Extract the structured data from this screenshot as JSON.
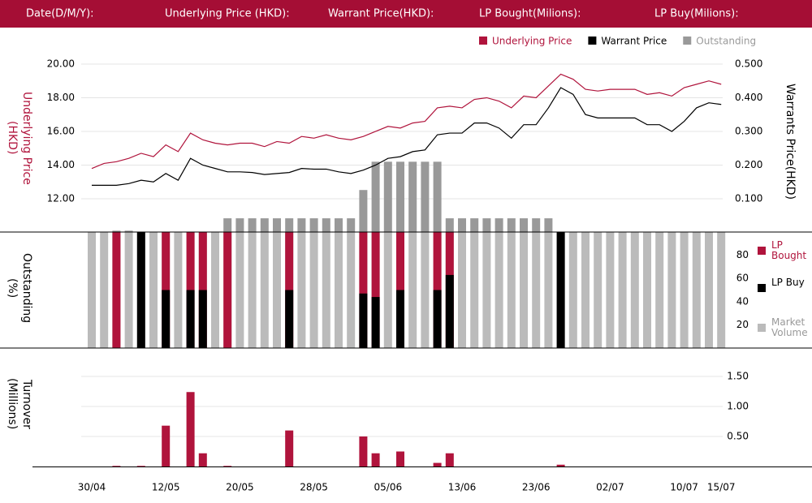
{
  "header": {
    "labels": [
      "Date(D/M/Y):",
      "Underlying Price (HKD):",
      "Warrant  Price(HKD):",
      "LP Bought(Milions):",
      "LP Buy(Milions):"
    ]
  },
  "chart_data": [
    {
      "type": "line",
      "ylabel": "Underlying Price (HKD)",
      "y2label": "Warrants  Price(HKD)",
      "ylim": [
        10,
        20.5
      ],
      "yticks": [
        {
          "value": 20,
          "label": "20.00"
        },
        {
          "value": 18,
          "label": "18.00"
        },
        {
          "value": 16,
          "label": "16.00"
        },
        {
          "value": 14,
          "label": "14.00"
        },
        {
          "value": 12,
          "label": "12.00"
        }
      ],
      "y2lim": [
        0,
        0.525
      ],
      "y2ticks": [
        {
          "value": 0.5,
          "label": "0.500"
        },
        {
          "value": 0.4,
          "label": "0.400"
        },
        {
          "value": 0.3,
          "label": "0.300"
        },
        {
          "value": 0.2,
          "label": "0.200"
        },
        {
          "value": 0.1,
          "label": "0.100"
        }
      ],
      "y3lim": [
        0,
        100
      ],
      "grid": true,
      "legend": "top-right",
      "series": [
        {
          "name": "Underlying Price",
          "color": "#b0143c",
          "values": [
            13.8,
            14.1,
            14.2,
            14.4,
            14.7,
            14.5,
            15.2,
            14.8,
            15.9,
            15.5,
            15.3,
            15.2,
            15.3,
            15.3,
            15.1,
            15.4,
            15.3,
            15.7,
            15.6,
            15.8,
            15.6,
            15.5,
            15.7,
            16.0,
            16.3,
            16.2,
            16.5,
            16.6,
            17.4,
            17.5,
            17.4,
            17.9,
            18.0,
            17.8,
            17.4,
            18.1,
            18.0,
            18.7,
            19.4,
            19.1,
            18.5,
            18.4,
            18.5,
            18.5,
            18.5,
            18.2,
            18.3,
            18.1,
            18.6,
            18.8,
            19.0,
            18.8
          ]
        },
        {
          "name": "Warrant  Price",
          "color": "#000000",
          "axis": "y2",
          "values": [
            0.14,
            0.14,
            0.14,
            0.145,
            0.155,
            0.15,
            0.175,
            0.155,
            0.22,
            0.2,
            0.19,
            0.18,
            0.18,
            0.178,
            0.172,
            0.175,
            0.178,
            0.19,
            0.188,
            0.188,
            0.18,
            0.175,
            0.185,
            0.2,
            0.22,
            0.225,
            0.24,
            0.245,
            0.29,
            0.295,
            0.295,
            0.325,
            0.325,
            0.31,
            0.28,
            0.32,
            0.32,
            0.37,
            0.43,
            0.41,
            0.35,
            0.34,
            0.34,
            0.34,
            0.34,
            0.32,
            0.32,
            0.3,
            0.33,
            0.37,
            0.385,
            0.38
          ]
        },
        {
          "name": "Outstanding",
          "color": "#999999",
          "type": "bar",
          "axis": "y3",
          "values": [
            0,
            0,
            1,
            1,
            0,
            0,
            0,
            0,
            0,
            0,
            0,
            8,
            8,
            8,
            8,
            8,
            8,
            8,
            8,
            8,
            8,
            8,
            24,
            40,
            40,
            40,
            40,
            40,
            40,
            8,
            8,
            8,
            8,
            8,
            8,
            8,
            8,
            8,
            0,
            0,
            0,
            0,
            0,
            0,
            0,
            0,
            0,
            0,
            0,
            0,
            0,
            0
          ]
        }
      ]
    },
    {
      "type": "bar",
      "ylabel": "Outstanding (%)",
      "ylim": [
        0,
        100
      ],
      "yticks": [
        80,
        60,
        40,
        20
      ],
      "legend": "right",
      "series": [
        {
          "name": "Market Volume",
          "color": "#bbbbbb",
          "values": [
            100,
            100,
            100,
            100,
            100,
            100,
            100,
            100,
            100,
            100,
            100,
            100,
            100,
            100,
            100,
            100,
            100,
            100,
            100,
            100,
            100,
            100,
            100,
            100,
            100,
            100,
            100,
            100,
            100,
            100,
            100,
            100,
            100,
            100,
            100,
            100,
            100,
            100,
            100,
            100,
            100,
            100,
            100,
            100,
            100,
            100,
            100,
            100,
            100,
            100,
            100,
            100
          ]
        },
        {
          "name": "LP Bought",
          "color": "#b0143c",
          "values": [
            0,
            0,
            100,
            0,
            0,
            0,
            100,
            0,
            100,
            100,
            0,
            100,
            0,
            0,
            0,
            0,
            100,
            0,
            0,
            0,
            0,
            0,
            100,
            100,
            0,
            100,
            0,
            0,
            100,
            100,
            0,
            0,
            0,
            0,
            0,
            0,
            0,
            0,
            0,
            0,
            0,
            0,
            0,
            0,
            0,
            0,
            0,
            0,
            0,
            0,
            0,
            0
          ]
        },
        {
          "name": "LP Buy",
          "color": "#000000",
          "values": [
            0,
            0,
            0,
            0,
            100,
            0,
            50,
            0,
            50,
            50,
            0,
            0,
            0,
            0,
            0,
            0,
            50,
            0,
            0,
            0,
            0,
            0,
            47,
            44,
            0,
            50,
            0,
            0,
            50,
            63,
            0,
            0,
            0,
            0,
            0,
            0,
            0,
            0,
            100,
            0,
            0,
            0,
            0,
            0,
            0,
            0,
            0,
            0,
            0,
            0,
            0,
            0
          ]
        }
      ]
    },
    {
      "type": "bar",
      "ylabel": "Turnover (Millions)",
      "ylim": [
        0,
        2
      ],
      "grid": true,
      "yticks": [
        {
          "value": 1.5,
          "label": "1.50"
        },
        {
          "value": 1,
          "label": "1.00"
        },
        {
          "value": 0.5,
          "label": "0.50"
        }
      ],
      "categories": [
        "30/04",
        null,
        null,
        null,
        null,
        null,
        "12/05",
        null,
        null,
        null,
        null,
        null,
        "20/05",
        null,
        null,
        null,
        null,
        null,
        "28/05",
        null,
        null,
        null,
        null,
        null,
        "05/06",
        null,
        null,
        null,
        null,
        null,
        "13/06",
        null,
        null,
        null,
        null,
        null,
        "23/06",
        null,
        null,
        null,
        null,
        null,
        "02/07",
        null,
        null,
        null,
        null,
        null,
        "10/07",
        null,
        null,
        "15/07"
      ],
      "color": "#b0143c",
      "values": [
        0,
        0,
        0.01,
        0,
        0.01,
        0,
        0.68,
        0,
        1.24,
        0.22,
        0,
        0.01,
        0,
        0,
        0,
        0,
        0.6,
        0,
        0,
        0,
        0,
        0,
        0.5,
        0.22,
        0,
        0.25,
        0,
        0,
        0.06,
        0.22,
        0,
        0,
        0,
        0,
        0,
        0,
        0,
        0,
        0.03,
        0,
        0,
        0,
        0,
        0,
        0,
        0,
        0,
        0,
        0,
        0,
        0,
        0
      ]
    }
  ]
}
